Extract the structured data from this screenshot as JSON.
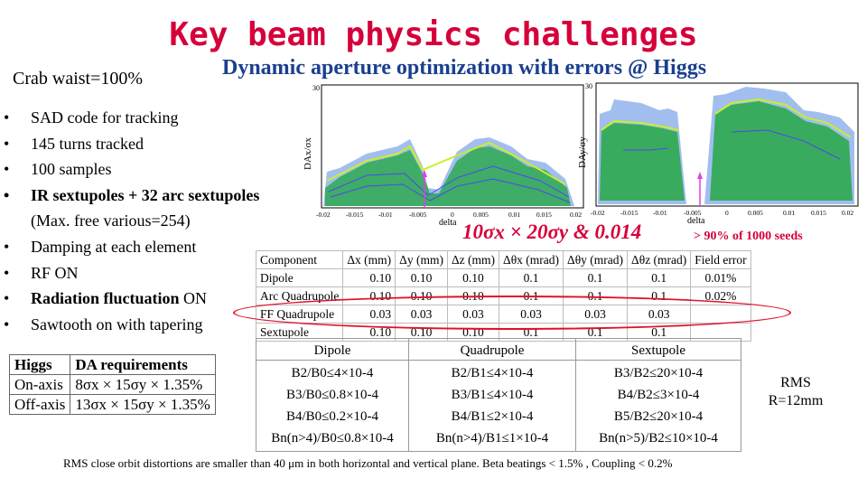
{
  "title": "Key beam physics challenges",
  "crab_waist": "Crab waist=100%",
  "subtitle": "Dynamic aperture optimization with errors @ Higgs",
  "bullets": [
    "SAD code for tracking",
    "145 turns tracked",
    "100 samples",
    "IR sextupoles + 32 arc sextupoles",
    "(Max. free various=254)",
    "Damping at each element",
    "RF ON",
    "Radiation fluctuation ON",
    "Sawtooth on with tapering"
  ],
  "formula": "10σx × 20σy & 0.014",
  "seeds": "> 90% of 1000 seeds",
  "plots": {
    "left": {
      "ylabel": "DAx/σx",
      "xlabel": "delta",
      "ytop": "30",
      "xticks": [
        "-0.02",
        "-0.015",
        "-0.01",
        "-0.005",
        "0",
        "0.005",
        "0.01",
        "0.015",
        "0.02"
      ]
    },
    "right": {
      "ylabel": "DAy/σy",
      "xlabel": "delta",
      "ytop": "30",
      "xticks": [
        "-0.02",
        "-0.015",
        "-0.01",
        "-0.005",
        "0",
        "0.005",
        "0.01",
        "0.015",
        "0.02"
      ]
    }
  },
  "error_table": {
    "headers": [
      "Component",
      "Δx (mm)",
      "Δy (mm)",
      "Δz (mm)",
      "Δθx (mrad)",
      "Δθy (mrad)",
      "Δθz (mrad)",
      "Field error"
    ],
    "rows": [
      [
        "Dipole",
        "0.10",
        "0.10",
        "0.10",
        "0.1",
        "0.1",
        "0.1",
        "0.01%"
      ],
      [
        "Arc Quadrupole",
        "0.10",
        "0.10",
        "0.10",
        "0.1",
        "0.1",
        "0.1",
        "0.02%"
      ],
      [
        "FF Quadrupole",
        "0.03",
        "0.03",
        "0.03",
        "0.03",
        "0.03",
        "0.03",
        ""
      ],
      [
        "Sextupole",
        "0.10",
        "0.10",
        "0.10",
        "0.1",
        "0.1",
        "0.1",
        ""
      ]
    ]
  },
  "da_table": {
    "header": [
      "Higgs",
      "DA requirements"
    ],
    "rows": [
      [
        "On-axis",
        "8σx × 15σy × 1.35%"
      ],
      [
        "Off-axis",
        "13σx × 15σy × 1.35%"
      ]
    ]
  },
  "multipole": {
    "headers": [
      "Dipole",
      "Quadrupole",
      "Sextupole"
    ],
    "dipole": [
      "B2/B0≤4×10-4",
      "B3/B0≤0.8×10-4",
      "B4/B0≤0.2×10-4",
      "Bn(n>4)/B0≤0.8×10-4"
    ],
    "quadrupole": [
      "B2/B1≤4×10-4",
      "B3/B1≤4×10-4",
      "B4/B1≤2×10-4",
      "Bn(n>4)/B1≤1×10-4"
    ],
    "sextupole": [
      "B3/B2≤20×10-4",
      "B4/B2≤3×10-4",
      "B5/B2≤20×10-4",
      "Bn(n>5)/B2≤10×10-4"
    ]
  },
  "rms": {
    "line1": "RMS",
    "line2": "R=12mm"
  },
  "footnote": "RMS close orbit distortions are smaller than 40 μm in both horizontal and vertical plane. Beta beatings < 1.5% , Coupling < 0.2%"
}
